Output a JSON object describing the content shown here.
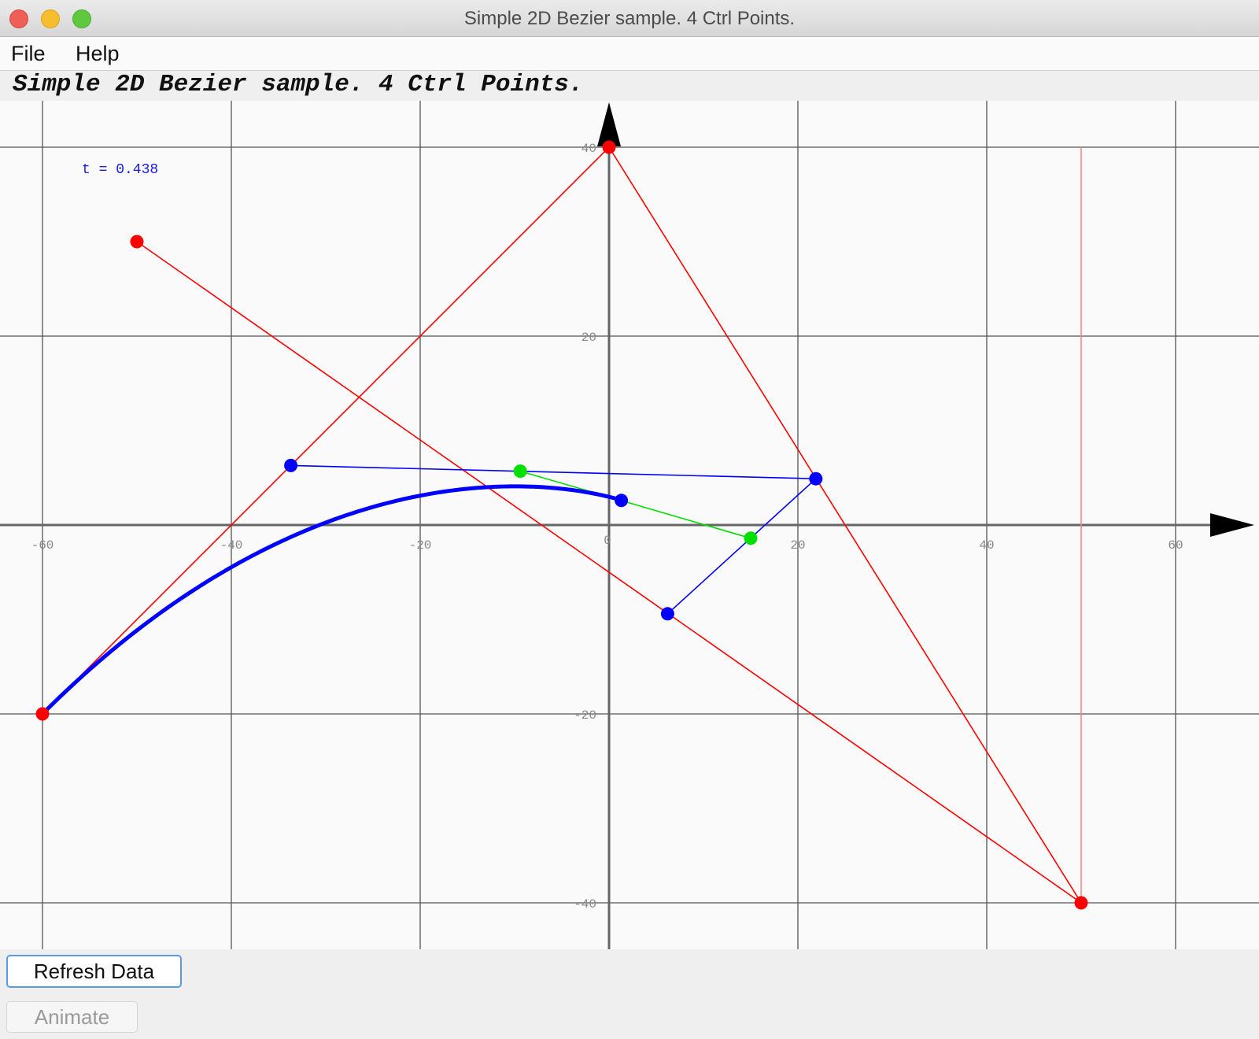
{
  "window": {
    "title": "Simple 2D Bezier sample. 4 Ctrl Points."
  },
  "menu": {
    "items": [
      "File",
      "Help"
    ]
  },
  "heading": "Simple 2D Bezier sample. 4 Ctrl Points.",
  "buttons": {
    "refresh_label": "Refresh Data",
    "animate_label": "Animate"
  },
  "plot": {
    "t_label": "t = 0.438",
    "x_ticks": [
      -60,
      -40,
      -20,
      0,
      20,
      40,
      60
    ],
    "y_ticks": [
      40,
      20,
      0,
      -20,
      -40
    ],
    "colors": {
      "control_polygon": "#ff0000",
      "level1": "#0000ff",
      "level2": "#00e000",
      "curve": "#0000ff",
      "grid": "#555555",
      "marker_line": "#ff8080"
    }
  },
  "chart_data": {
    "type": "line",
    "title": "",
    "xlabel": "",
    "ylabel": "",
    "xlim": [
      -60,
      65
    ],
    "ylim": [
      -45,
      45
    ],
    "grid": true,
    "t": 0.438,
    "control_points": [
      {
        "x": -60,
        "y": -20
      },
      {
        "x": 0,
        "y": 40
      },
      {
        "x": 50,
        "y": -40
      },
      {
        "x": -50,
        "y": 30
      }
    ],
    "series": [
      {
        "name": "",
        "role": "control-polygon",
        "points": [
          [
            -60,
            -20
          ],
          [
            0,
            40
          ],
          [
            50,
            -40
          ],
          [
            -50,
            30
          ]
        ]
      },
      {
        "name": "",
        "role": "level-1",
        "points": [
          [
            -33.7,
            6.3
          ],
          [
            21.9,
            4.9
          ],
          [
            6.2,
            -9.4
          ]
        ]
      },
      {
        "name": "",
        "role": "level-2",
        "points": [
          [
            -9.4,
            5.7
          ],
          [
            15.0,
            -1.4
          ]
        ]
      },
      {
        "name": "",
        "role": "curve-point",
        "points": [
          [
            1.3,
            2.6
          ]
        ]
      }
    ],
    "marker_x": 50
  }
}
